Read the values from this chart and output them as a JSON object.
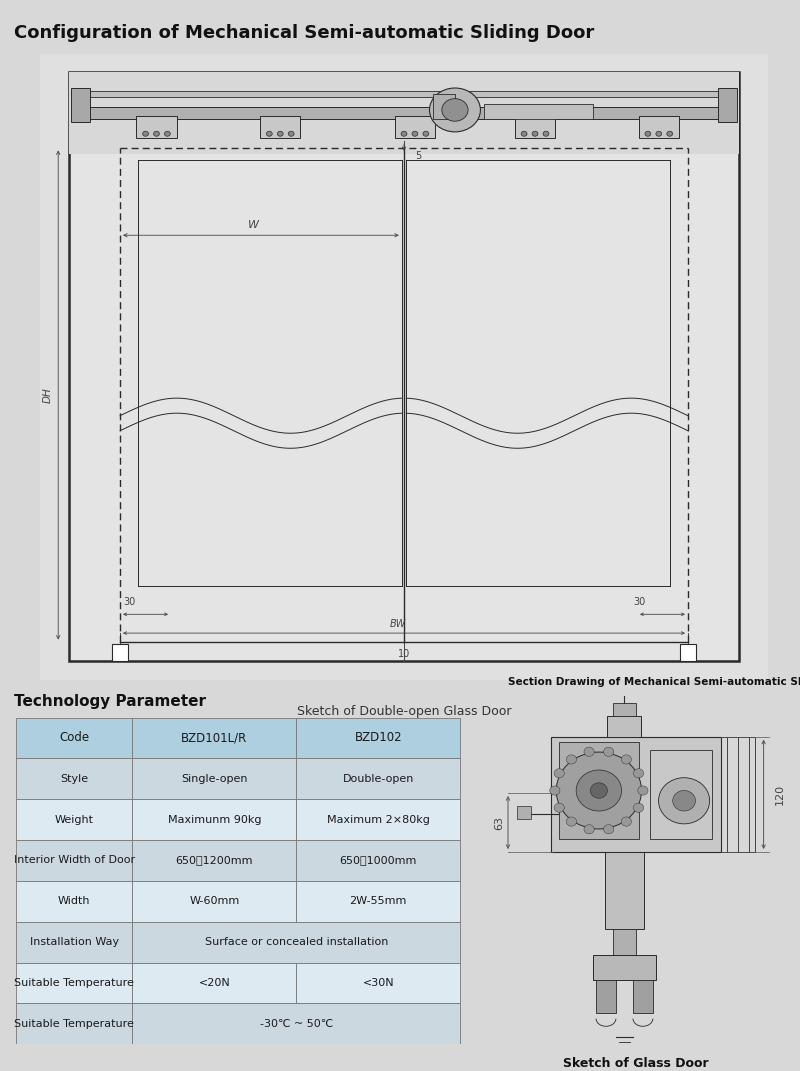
{
  "title": "Configuration of Mechanical Semi-automatic Sliding Door",
  "title_fontsize": 13,
  "bg_color": "#d8d8d8",
  "page_bg": "#d0d0d0",
  "sketch_caption": "Sketch of Double-open Glass Door",
  "tech_param_title": "Technology Parameter",
  "section_drawing_title": "Section Drawing of Mechanical Semi-automatic Slidir",
  "sketch_glass_door_caption": "Sketch of Glass Door",
  "table_headers": [
    "Code",
    "BZD101L/R",
    "BZD102"
  ],
  "table_rows": [
    [
      "Style",
      "Single-open",
      "Double-open"
    ],
    [
      "Weight",
      "Maximunm 90kg",
      "Maximum 2×80kg"
    ],
    [
      "Interior Width of Door",
      "650～1200mm",
      "650～1000mm"
    ],
    [
      "Width",
      "W-60mm",
      "2W-55mm"
    ],
    [
      "Installation Way",
      "Surface or concealed installation",
      ""
    ],
    [
      "Suitable Temperature",
      "<20N",
      "<30N"
    ],
    [
      "Suitable Temperature",
      "-30℃ ~ 50℃",
      ""
    ]
  ],
  "table_header_bg": "#aecfe0",
  "table_row_bg_light": "#ddeaf2",
  "table_row_bg_mid": "#ccd8e0",
  "dim_label_5": "5",
  "dim_label_W": "W",
  "dim_label_DH": "DH",
  "dim_label_30left": "30",
  "dim_label_30right": "30",
  "dim_label_BW": "BW",
  "dim_label_10": "10",
  "dim_label_63": "63",
  "dim_label_120": "120"
}
